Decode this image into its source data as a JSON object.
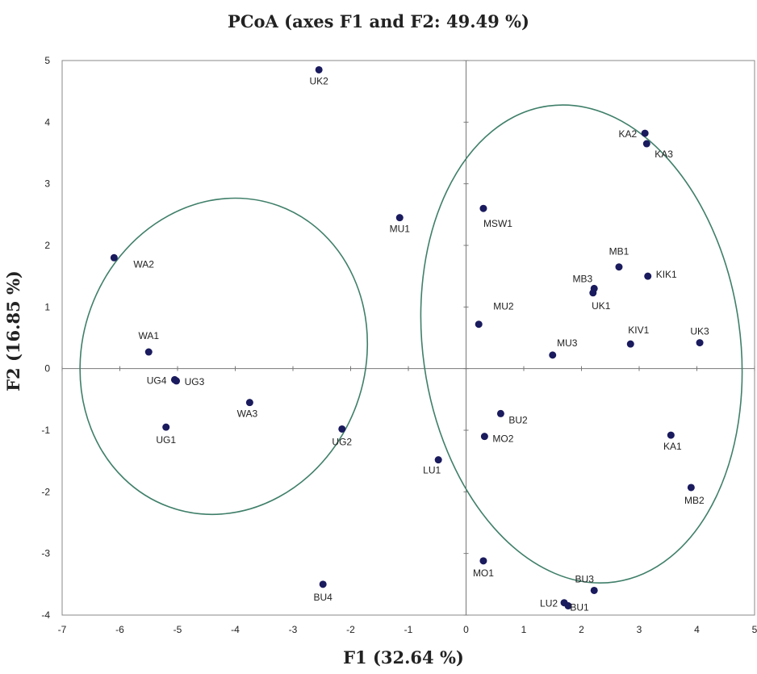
{
  "chart_data": {
    "type": "scatter",
    "title": "PCoA (axes F1 and F2: 49.49 %)",
    "xlabel": "F1 (32.64 %)",
    "ylabel": "F2 (16.85 %)",
    "xlim": [
      -7,
      5
    ],
    "ylim": [
      -4,
      5
    ],
    "xticks": [
      -7,
      -6,
      -5,
      -4,
      -3,
      -2,
      -1,
      0,
      1,
      2,
      3,
      4,
      5
    ],
    "yticks": [
      -4,
      -3,
      -2,
      -1,
      0,
      1,
      2,
      3,
      4,
      5
    ],
    "grid": false,
    "point_color": "#1a1a5e",
    "ellipse_color": "#3f7f6a",
    "points": [
      {
        "label": "UK2",
        "x": -2.55,
        "y": 4.85
      },
      {
        "label": "MU1",
        "x": -1.15,
        "y": 2.45
      },
      {
        "label": "MSW1",
        "x": 0.3,
        "y": 2.6
      },
      {
        "label": "KA2",
        "x": 3.1,
        "y": 3.82
      },
      {
        "label": "KA3",
        "x": 3.13,
        "y": 3.65
      },
      {
        "label": "WA2",
        "x": -6.1,
        "y": 1.8
      },
      {
        "label": "MB1",
        "x": 2.65,
        "y": 1.65
      },
      {
        "label": "KIK1",
        "x": 3.15,
        "y": 1.5
      },
      {
        "label": "MB3",
        "x": 2.22,
        "y": 1.3
      },
      {
        "label": "UK1",
        "x": 2.2,
        "y": 1.23
      },
      {
        "label": "MU2",
        "x": 0.22,
        "y": 0.72
      },
      {
        "label": "WA1",
        "x": -5.5,
        "y": 0.27
      },
      {
        "label": "KIV1",
        "x": 2.85,
        "y": 0.4
      },
      {
        "label": "UK3",
        "x": 4.05,
        "y": 0.42
      },
      {
        "label": "MU3",
        "x": 1.5,
        "y": 0.22
      },
      {
        "label": "UG4",
        "x": -5.05,
        "y": -0.18
      },
      {
        "label": "UG3",
        "x": -5.02,
        "y": -0.2
      },
      {
        "label": "WA3",
        "x": -3.75,
        "y": -0.55
      },
      {
        "label": "UG1",
        "x": -5.2,
        "y": -0.95
      },
      {
        "label": "UG2",
        "x": -2.15,
        "y": -0.98
      },
      {
        "label": "BU2",
        "x": 0.6,
        "y": -0.73
      },
      {
        "label": "MO2",
        "x": 0.32,
        "y": -1.1
      },
      {
        "label": "LU1",
        "x": -0.48,
        "y": -1.48
      },
      {
        "label": "KA1",
        "x": 3.55,
        "y": -1.08
      },
      {
        "label": "MB2",
        "x": 3.9,
        "y": -1.93
      },
      {
        "label": "MO1",
        "x": 0.3,
        "y": -3.12
      },
      {
        "label": "BU4",
        "x": -2.48,
        "y": -3.5
      },
      {
        "label": "BU3",
        "x": 2.22,
        "y": -3.6
      },
      {
        "label": "LU2",
        "x": 1.7,
        "y": -3.8
      },
      {
        "label": "BU1",
        "x": 1.77,
        "y": -3.85
      }
    ],
    "ellipses": [
      {
        "group": "left",
        "cx": -4.2,
        "cy": 0.2,
        "rx": 2.45,
        "ry": 2.6,
        "angle_deg": 20
      },
      {
        "group": "right",
        "cx": 2.0,
        "cy": 0.4,
        "rx": 2.75,
        "ry": 3.9,
        "angle_deg": -8
      }
    ]
  }
}
